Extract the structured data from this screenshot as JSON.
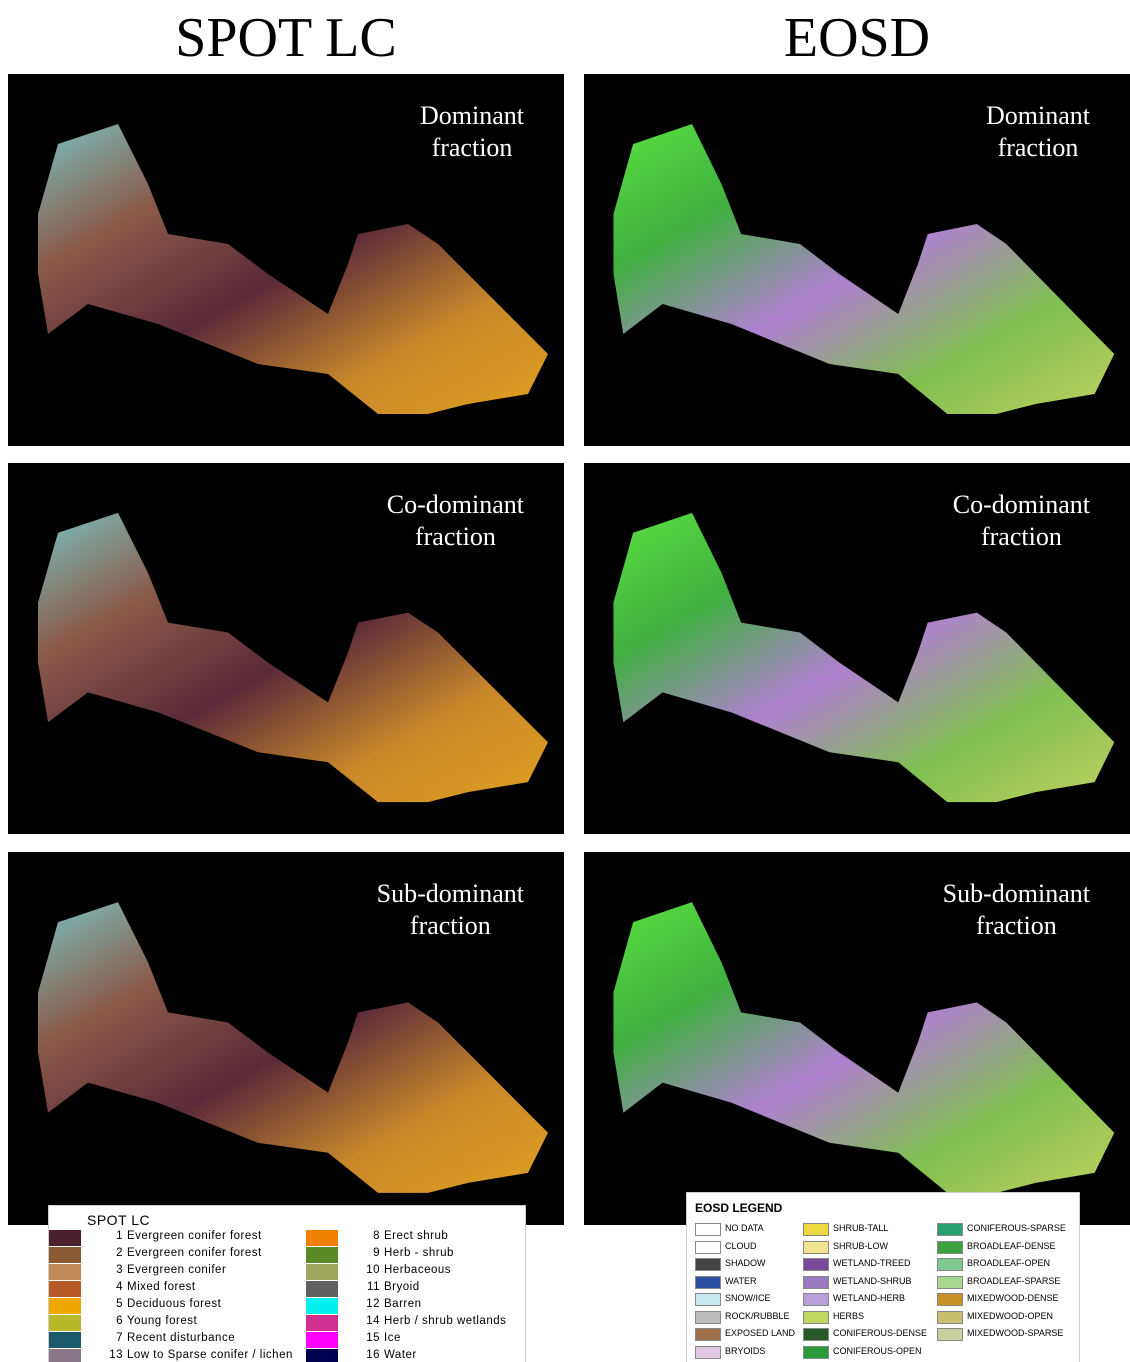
{
  "columns": [
    {
      "title": "SPOT LC",
      "panels": [
        [
          "Dominant",
          "fraction"
        ],
        [
          "Co-dominant",
          "fraction"
        ],
        [
          "Sub-dominant",
          "fraction"
        ]
      ]
    },
    {
      "title": "EOSD",
      "panels": [
        [
          "Dominant",
          "fraction"
        ],
        [
          "Co-dominant",
          "fraction"
        ],
        [
          "Sub-dominant",
          "fraction"
        ]
      ]
    }
  ],
  "spot_legend": {
    "title": "SPOT LC",
    "left": [
      {
        "number": 1,
        "label": "Evergreen conifer forest",
        "color": "#4a1f2e"
      },
      {
        "number": 2,
        "label": "Evergreen conifer forest",
        "color": "#8a5a32"
      },
      {
        "number": 3,
        "label": "Evergreen conifer",
        "color": "#c08a58"
      },
      {
        "number": 4,
        "label": "Mixed forest",
        "color": "#b85a28"
      },
      {
        "number": 5,
        "label": "Deciduous forest",
        "color": "#f0a800"
      },
      {
        "number": 6,
        "label": "Young forest",
        "color": "#b8b828"
      },
      {
        "number": 7,
        "label": "Recent disturbance",
        "color": "#1a5a6a"
      },
      {
        "number": 13,
        "label": "Low to Sparse conifer / lichen",
        "color": "#8a7888"
      }
    ],
    "right": [
      {
        "number": 8,
        "label": "Erect shrub",
        "color": "#f08000"
      },
      {
        "number": 9,
        "label": "Herb - shrub",
        "color": "#5a8a28"
      },
      {
        "number": 10,
        "label": "Herbaceous",
        "color": "#a0a860"
      },
      {
        "number": 11,
        "label": "Bryoid",
        "color": "#606060"
      },
      {
        "number": 12,
        "label": "Barren",
        "color": "#00f0f0"
      },
      {
        "number": 14,
        "label": "Herb / shrub wetlands",
        "color": "#d03090"
      },
      {
        "number": 15,
        "label": "Ice",
        "color": "#ff00ff"
      },
      {
        "number": 16,
        "label": "Water",
        "color": "#000050"
      }
    ]
  },
  "eosd_legend": {
    "title": "EOSD LEGEND",
    "columns": [
      [
        {
          "label": "NO DATA",
          "color": "#ffffff"
        },
        {
          "label": "CLOUD",
          "color": "#ffffff"
        },
        {
          "label": "SHADOW",
          "color": "#444444"
        },
        {
          "label": "WATER",
          "color": "#2a4fa0"
        },
        {
          "label": "SNOW/ICE",
          "color": "#c8e8f0"
        },
        {
          "label": "ROCK/RUBBLE",
          "color": "#bcbcbc"
        },
        {
          "label": "EXPOSED LAND",
          "color": "#a0704a"
        },
        {
          "label": "BRYOIDS",
          "color": "#e0c8e0"
        }
      ],
      [
        {
          "label": "SHRUB-TALL",
          "color": "#f0d840"
        },
        {
          "label": "SHRUB-LOW",
          "color": "#f0e490"
        },
        {
          "label": "WETLAND-TREED",
          "color": "#7a4a9a"
        },
        {
          "label": "WETLAND-SHRUB",
          "color": "#9a7ac0"
        },
        {
          "label": "WETLAND-HERB",
          "color": "#b8a0d8"
        },
        {
          "label": "HERBS",
          "color": "#c0d860"
        },
        {
          "label": "CONIFEROUS-DENSE",
          "color": "#2a5a2a"
        },
        {
          "label": "CONIFEROUS-OPEN",
          "color": "#2a9a3a"
        }
      ],
      [
        {
          "label": "CONIFEROUS-SPARSE",
          "color": "#2aa070"
        },
        {
          "label": "BROADLEAF-DENSE",
          "color": "#3aa040"
        },
        {
          "label": "BROADLEAF-OPEN",
          "color": "#80c890"
        },
        {
          "label": "BROADLEAF-SPARSE",
          "color": "#a8d890"
        },
        {
          "label": "MIXEDWOOD-DENSE",
          "color": "#c89028"
        },
        {
          "label": "MIXEDWOOD-OPEN",
          "color": "#c8c070"
        },
        {
          "label": "MIXEDWOOD-SPARSE",
          "color": "#c8d0a0"
        }
      ]
    ]
  }
}
